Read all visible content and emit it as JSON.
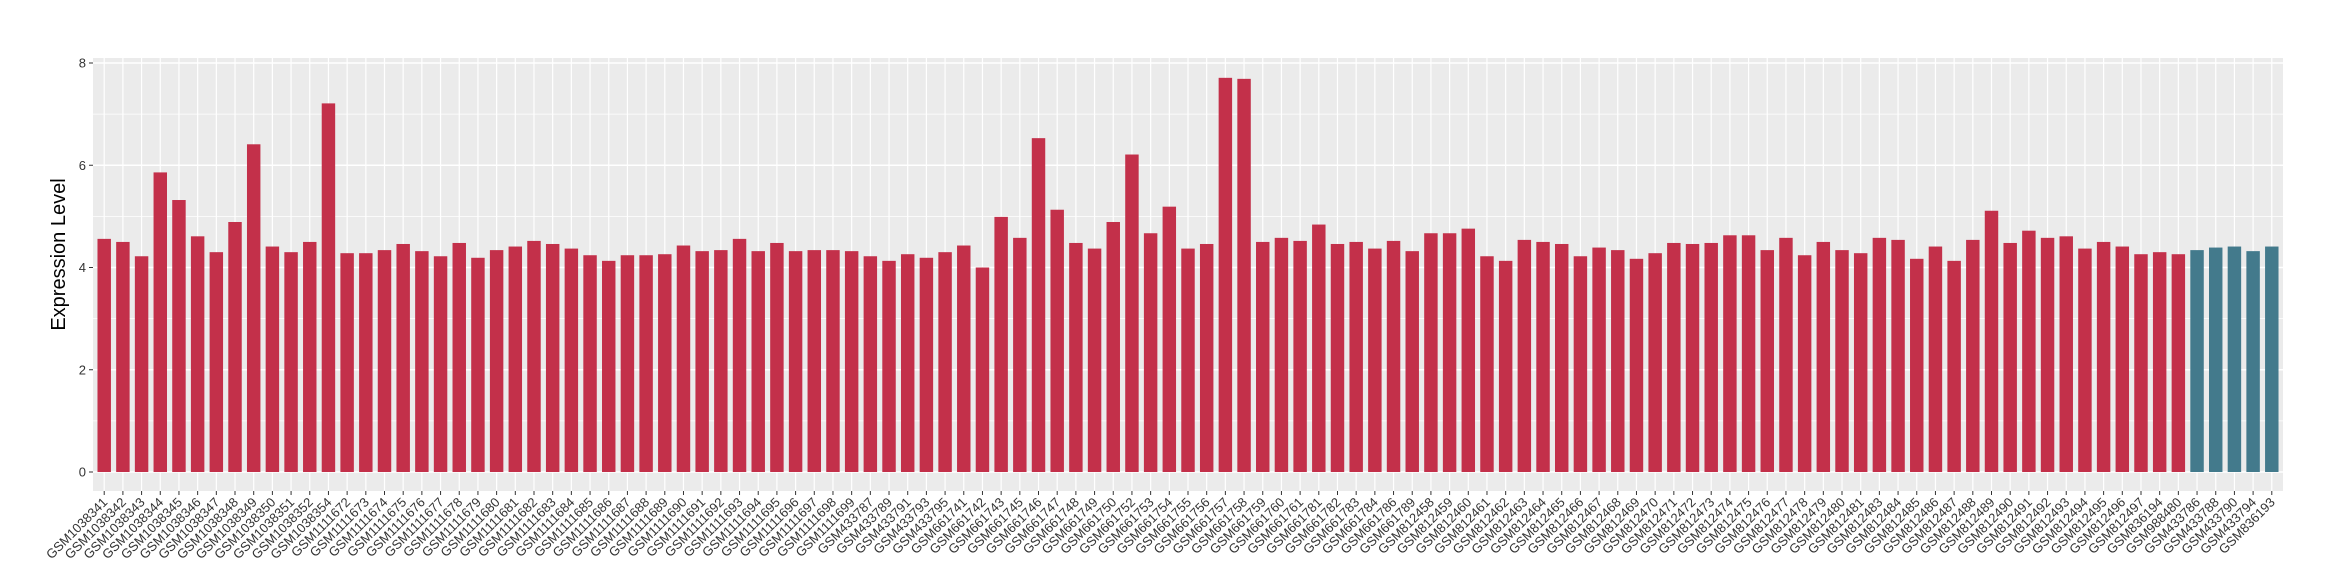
{
  "chart_data": {
    "type": "bar",
    "title": "",
    "xlabel": "",
    "ylabel": "Expression Level",
    "ylim": [
      0,
      8
    ],
    "yticks": [
      0,
      2,
      4,
      6,
      8
    ],
    "grid": true,
    "legend": "none",
    "colors": {
      "group1": "#C3304A",
      "group2": "#437A8C",
      "panel": "#EBEBEB",
      "grid": "#FFFFFF"
    },
    "categories": [
      "GSM1038341",
      "GSM1038342",
      "GSM1038343",
      "GSM1038344",
      "GSM1038345",
      "GSM1038346",
      "GSM1038347",
      "GSM1038348",
      "GSM1038349",
      "GSM1038350",
      "GSM1038351",
      "GSM1038352",
      "GSM1038354",
      "GSM1111672",
      "GSM1111673",
      "GSM1111674",
      "GSM1111675",
      "GSM1111676",
      "GSM1111677",
      "GSM1111678",
      "GSM1111679",
      "GSM1111680",
      "GSM1111681",
      "GSM1111682",
      "GSM1111683",
      "GSM1111684",
      "GSM1111685",
      "GSM1111686",
      "GSM1111687",
      "GSM1111688",
      "GSM1111689",
      "GSM1111690",
      "GSM1111691",
      "GSM1111692",
      "GSM1111693",
      "GSM1111694",
      "GSM1111695",
      "GSM1111696",
      "GSM1111697",
      "GSM1111698",
      "GSM1111699",
      "GSM433787",
      "GSM433789",
      "GSM433791",
      "GSM433793",
      "GSM433795",
      "GSM661741",
      "GSM661742",
      "GSM661743",
      "GSM661745",
      "GSM661746",
      "GSM661747",
      "GSM661748",
      "GSM661749",
      "GSM661750",
      "GSM661752",
      "GSM661753",
      "GSM661754",
      "GSM661755",
      "GSM661756",
      "GSM661757",
      "GSM661758",
      "GSM661759",
      "GSM661760",
      "GSM661761",
      "GSM661781",
      "GSM661782",
      "GSM661783",
      "GSM661784",
      "GSM661786",
      "GSM661789",
      "GSM812458",
      "GSM812459",
      "GSM812460",
      "GSM812461",
      "GSM812462",
      "GSM812463",
      "GSM812464",
      "GSM812465",
      "GSM812466",
      "GSM812467",
      "GSM812468",
      "GSM812469",
      "GSM812470",
      "GSM812471",
      "GSM812472",
      "GSM812473",
      "GSM812474",
      "GSM812475",
      "GSM812476",
      "GSM812477",
      "GSM812478",
      "GSM812479",
      "GSM812480",
      "GSM812481",
      "GSM812483",
      "GSM812484",
      "GSM812485",
      "GSM812486",
      "GSM812487",
      "GSM812488",
      "GSM812489",
      "GSM812490",
      "GSM812491",
      "GSM812492",
      "GSM812493",
      "GSM812494",
      "GSM812495",
      "GSM812496",
      "GSM812497",
      "GSM836194",
      "GSM988480",
      "GSM433786",
      "GSM433788",
      "GSM433790",
      "GSM433794",
      "GSM836193"
    ],
    "values": [
      4.56,
      4.5,
      4.22,
      5.86,
      5.32,
      4.61,
      4.3,
      4.89,
      6.41,
      4.41,
      4.3,
      4.5,
      7.21,
      4.28,
      4.28,
      4.34,
      4.46,
      4.32,
      4.22,
      4.48,
      4.19,
      4.34,
      4.41,
      4.52,
      4.46,
      4.37,
      4.24,
      4.13,
      4.24,
      4.24,
      4.26,
      4.43,
      4.32,
      4.34,
      4.56,
      4.32,
      4.48,
      4.32,
      4.34,
      4.34,
      4.32,
      4.22,
      4.13,
      4.26,
      4.19,
      4.3,
      4.43,
      4.0,
      4.99,
      4.58,
      6.53,
      5.13,
      4.48,
      4.37,
      4.89,
      6.21,
      4.67,
      5.19,
      4.37,
      4.46,
      7.71,
      7.69,
      4.5,
      4.58,
      4.52,
      4.84,
      4.46,
      4.5,
      4.37,
      4.52,
      4.32,
      4.67,
      4.67,
      4.76,
      4.22,
      4.13,
      4.54,
      4.5,
      4.46,
      4.22,
      4.39,
      4.34,
      4.17,
      4.28,
      4.48,
      4.46,
      4.48,
      4.63,
      4.63,
      4.34,
      4.58,
      4.24,
      4.5,
      4.34,
      4.28,
      4.58,
      4.54,
      4.17,
      4.41,
      4.13,
      4.54,
      5.11,
      4.48,
      4.72,
      4.58,
      4.61,
      4.37,
      4.5,
      4.41,
      4.26,
      4.3,
      4.26,
      4.34,
      4.39,
      4.41,
      4.32,
      4.41
    ],
    "groups": [
      1,
      1,
      1,
      1,
      1,
      1,
      1,
      1,
      1,
      1,
      1,
      1,
      1,
      1,
      1,
      1,
      1,
      1,
      1,
      1,
      1,
      1,
      1,
      1,
      1,
      1,
      1,
      1,
      1,
      1,
      1,
      1,
      1,
      1,
      1,
      1,
      1,
      1,
      1,
      1,
      1,
      1,
      1,
      1,
      1,
      1,
      1,
      1,
      1,
      1,
      1,
      1,
      1,
      1,
      1,
      1,
      1,
      1,
      1,
      1,
      1,
      1,
      1,
      1,
      1,
      1,
      1,
      1,
      1,
      1,
      1,
      1,
      1,
      1,
      1,
      1,
      1,
      1,
      1,
      1,
      1,
      1,
      1,
      1,
      1,
      1,
      1,
      1,
      1,
      1,
      1,
      1,
      1,
      1,
      1,
      1,
      1,
      1,
      1,
      1,
      1,
      1,
      1,
      1,
      1,
      1,
      1,
      1,
      1,
      1,
      1,
      1,
      2,
      2,
      2,
      2,
      2
    ]
  }
}
